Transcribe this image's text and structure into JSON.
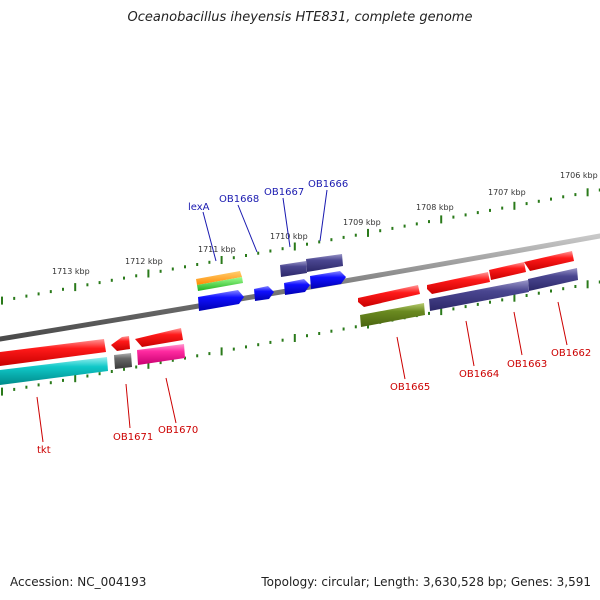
{
  "title": "Oceanobacillus iheyensis HTE831, complete genome",
  "footer": {
    "accession": "Accession: NC_004193",
    "summary": "Topology: circular; Length: 3,630,528 bp; Genes: 3,591"
  },
  "colors": {
    "backbone": "#8a8a8a",
    "ticks": "#2a7a1a",
    "forward_label": "#1a1ab0",
    "reverse_label": "#cc0000"
  },
  "kbp_labels": [
    "1713 kbp",
    "1712 kbp",
    "1711 kbp",
    "1710 kbp",
    "1709 kbp",
    "1708 kbp",
    "1707 kbp",
    "1706 kbp"
  ],
  "forward_gene_labels": [
    "lexA",
    "OB1668",
    "OB1667",
    "OB1666"
  ],
  "reverse_gene_labels": [
    "tkt",
    "OB1671",
    "OB1670",
    "OB1665",
    "OB1664",
    "OB1663",
    "OB1662"
  ]
}
